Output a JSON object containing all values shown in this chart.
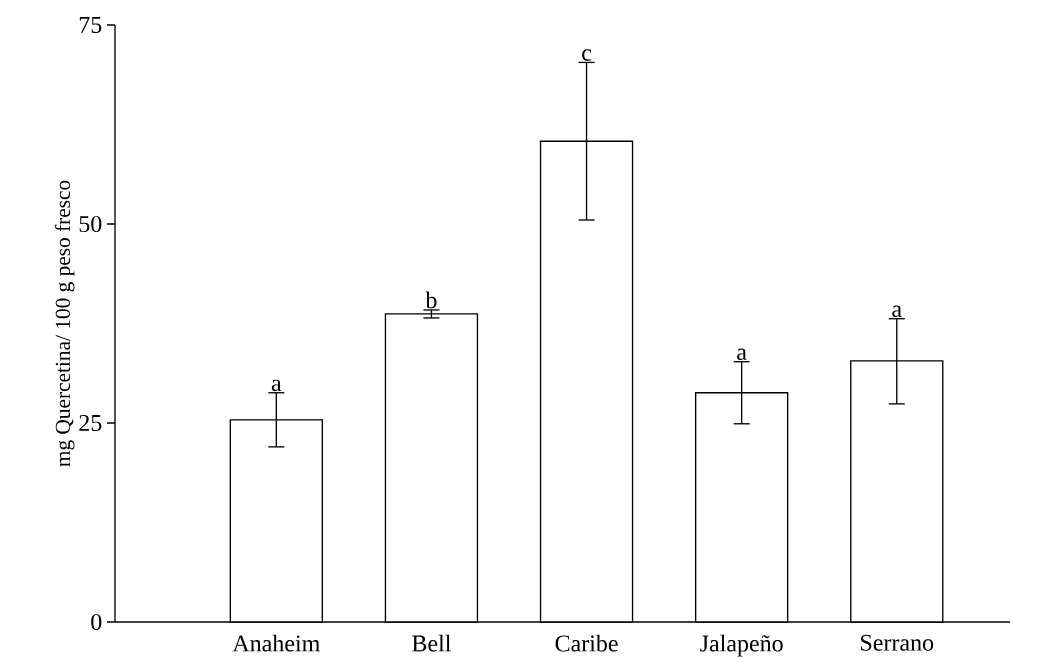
{
  "chart_data": {
    "type": "bar",
    "ylabel": "mg Quercetina/ 100 g peso fresco",
    "categories": [
      "Anaheim",
      "Bell",
      "Caribe",
      "Jalapeño",
      "Serrano"
    ],
    "values": [
      25.4,
      38.7,
      60.4,
      28.8,
      32.8
    ],
    "errors": [
      [
        22.0,
        28.8
      ],
      [
        38.2,
        39.2
      ],
      [
        50.5,
        70.3
      ],
      [
        24.9,
        32.7
      ],
      [
        27.4,
        38.1
      ]
    ],
    "color": "#ffffff",
    "ylim": [
      0,
      75
    ],
    "yticks": [
      0,
      25,
      50,
      75
    ],
    "grid": false,
    "annotations": [
      {
        "text": "a",
        "x": "Anaheim",
        "y": 28.8
      },
      {
        "text": "b",
        "x": "Bell",
        "y": 39.2
      },
      {
        "text": "c",
        "x": "Caribe",
        "y": 70.3
      },
      {
        "text": "a",
        "x": "Jalapeño",
        "y": 32.7
      },
      {
        "text": "a",
        "x": "Serrano",
        "y": 38.1
      }
    ]
  }
}
